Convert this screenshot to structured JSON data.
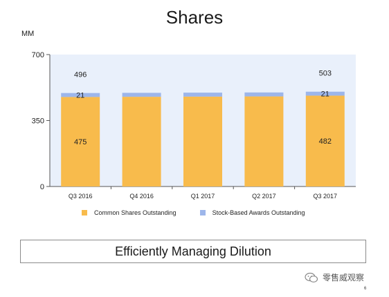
{
  "slide": {
    "title": "Shares",
    "unit": "MM",
    "callout": "Efficiently Managing Dilution",
    "page_number": "6",
    "watermark": "零售威观察"
  },
  "colors": {
    "plot_background": "#e9f0fb",
    "common": "#f8bb4c",
    "awards": "#9db6ea"
  },
  "chart_data": {
    "type": "bar",
    "stacked": true,
    "categories": [
      "Q3 2016",
      "Q4 2016",
      "Q1 2017",
      "Q2 2017",
      "Q3 2017"
    ],
    "series": [
      {
        "name": "Common Shares Outstanding",
        "values": [
          475,
          476,
          477,
          478,
          482
        ],
        "color": "#f8bb4c"
      },
      {
        "name": "Stock-Based Awards Outstanding",
        "values": [
          21,
          21,
          21,
          21,
          21
        ],
        "color": "#9db6ea"
      }
    ],
    "data_labels": [
      {
        "category": "Q3 2016",
        "total": "496",
        "awards": "21",
        "common": "475"
      },
      {
        "category": "Q3 2017",
        "total": "503",
        "awards": "21",
        "common": "482"
      }
    ],
    "ylim": [
      0,
      700
    ],
    "yticks": [
      "0",
      "350",
      "700"
    ],
    "ylabel": "MM",
    "legend": "bottom",
    "grid": false
  }
}
